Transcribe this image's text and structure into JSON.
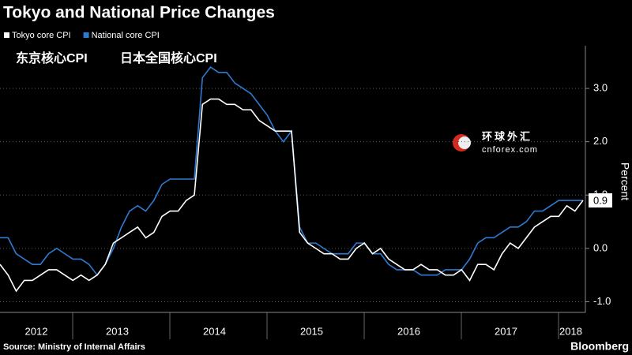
{
  "chart_data": {
    "type": "line",
    "title": "Tokyo and National Price Changes",
    "annotations": [
      "东京核心CPI",
      "日本全国核心CPI"
    ],
    "watermark": [
      "环球外汇",
      "cnforex.com"
    ],
    "ylabel": "Percent",
    "source": "Source: Ministry of Internal Affairs",
    "brand": "Bloomberg",
    "legend": "top-left",
    "grid": true,
    "categories": [
      null,
      null,
      null,
      null,
      "2012",
      null,
      null,
      null,
      null,
      null,
      null,
      null,
      null,
      null,
      "2013",
      null,
      null,
      null,
      null,
      null,
      null,
      null,
      null,
      null,
      null,
      null,
      "2014",
      null,
      null,
      null,
      null,
      null,
      null,
      null,
      null,
      null,
      null,
      null,
      "2015",
      null,
      null,
      null,
      null,
      null,
      null,
      null,
      null,
      null,
      null,
      null,
      "2016",
      null,
      null,
      null,
      null,
      null,
      null,
      null,
      null,
      null,
      null,
      null,
      "2017",
      null,
      null,
      null,
      null,
      null,
      null,
      null,
      "2018",
      null,
      null
    ],
    "series": [
      {
        "name": "Tokyo core CPI",
        "color": "#ffffff",
        "values": [
          -0.3,
          -0.5,
          -0.8,
          -0.6,
          -0.6,
          -0.5,
          -0.4,
          -0.4,
          -0.5,
          -0.6,
          -0.5,
          -0.6,
          -0.5,
          -0.3,
          0.1,
          0.2,
          0.3,
          0.4,
          0.2,
          0.3,
          0.6,
          0.7,
          0.7,
          0.9,
          1.0,
          2.7,
          2.8,
          2.8,
          2.7,
          2.7,
          2.6,
          2.6,
          2.4,
          2.3,
          2.2,
          2.2,
          2.2,
          0.3,
          0.1,
          0.0,
          -0.1,
          -0.1,
          -0.2,
          -0.2,
          0.0,
          0.1,
          -0.1,
          0.0,
          -0.2,
          -0.3,
          -0.4,
          -0.4,
          -0.3,
          -0.4,
          -0.4,
          -0.5,
          -0.5,
          -0.4,
          -0.6,
          -0.3,
          -0.3,
          -0.4,
          -0.1,
          0.1,
          0.0,
          0.2,
          0.4,
          0.5,
          0.6,
          0.6,
          0.8,
          0.7,
          0.9
        ]
      },
      {
        "name": "National core CPI",
        "color": "#2e7ad1",
        "values": [
          0.2,
          0.2,
          -0.1,
          -0.2,
          -0.3,
          -0.3,
          -0.1,
          0.0,
          -0.1,
          -0.2,
          -0.2,
          -0.3,
          -0.5,
          -0.3,
          0.0,
          0.4,
          0.7,
          0.8,
          0.7,
          0.9,
          1.2,
          1.3,
          1.3,
          1.3,
          1.3,
          3.2,
          3.4,
          3.3,
          3.3,
          3.1,
          3.0,
          2.9,
          2.7,
          2.5,
          2.2,
          2.0,
          2.2,
          0.4,
          0.1,
          0.1,
          0.0,
          -0.1,
          -0.1,
          -0.1,
          0.1,
          0.1,
          -0.1,
          -0.1,
          -0.3,
          -0.4,
          -0.4,
          -0.4,
          -0.5,
          -0.5,
          -0.5,
          -0.4,
          -0.4,
          -0.4,
          -0.2,
          0.1,
          0.2,
          0.2,
          0.3,
          0.4,
          0.4,
          0.5,
          0.7,
          0.7,
          0.8,
          0.9,
          0.9,
          0.9,
          0.9
        ]
      }
    ],
    "ylim": [
      -1.2,
      3.8
    ],
    "yticks": [
      {
        "value": -1,
        "label": "-1.0"
      },
      {
        "value": 0,
        "label": "0.0"
      },
      {
        "value": 1,
        "label": "1.0"
      },
      {
        "value": 2,
        "label": "2.0"
      },
      {
        "value": 3,
        "label": "3.0"
      }
    ]
  }
}
